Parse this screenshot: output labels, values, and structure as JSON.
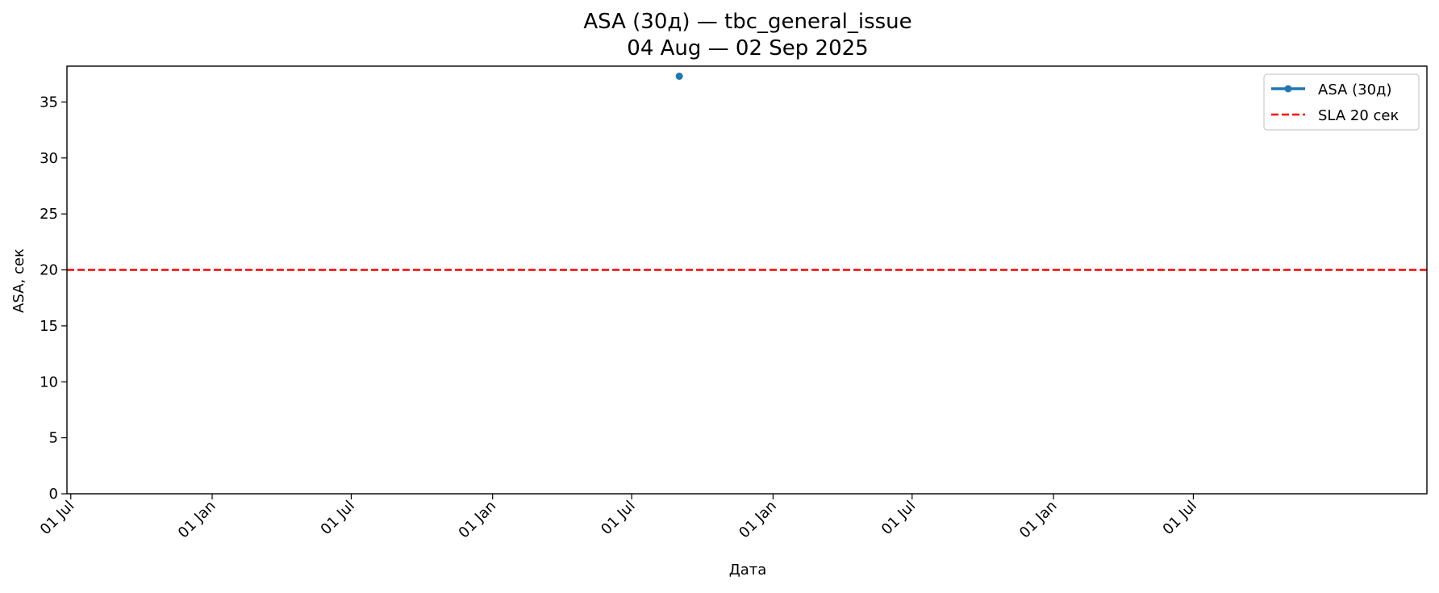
{
  "chart_data": {
    "type": "line",
    "title": "ASA (30д) — tbc_general_issue",
    "subtitle": "04 Aug — 02 Sep 2025",
    "xlabel": "Дата",
    "ylabel": "ASA, сек",
    "xlim": [
      "2020-06-26",
      "2025-05-01"
    ],
    "ylim": [
      0,
      38.2
    ],
    "x_ticks": [
      {
        "date": "2020-07-01",
        "label": "01 Jul"
      },
      {
        "date": "2021-01-01",
        "label": "01 Jan"
      },
      {
        "date": "2021-07-01",
        "label": "01 Jul"
      },
      {
        "date": "2022-01-01",
        "label": "01 Jan"
      },
      {
        "date": "2022-07-01",
        "label": "01 Jul"
      },
      {
        "date": "2023-01-01",
        "label": "01 Jan"
      },
      {
        "date": "2023-07-01",
        "label": "01 Jul"
      },
      {
        "date": "2024-01-01",
        "label": "01 Jan"
      },
      {
        "date": "2024-07-01",
        "label": "01 Jul"
      }
    ],
    "y_ticks": [
      0,
      5,
      10,
      15,
      20,
      25,
      30,
      35
    ],
    "series": [
      {
        "name": "ASA (30д)",
        "color": "#1f77b4",
        "style": "solid-marker",
        "points": [
          {
            "x": "2022-09-01",
            "y": 37.3
          }
        ]
      }
    ],
    "reference_lines": [
      {
        "name": "SLA 20 сек",
        "y": 20,
        "color": "#ff0000",
        "style": "dashed"
      }
    ],
    "legend": {
      "position": "top-right",
      "entries": [
        "ASA (30д)",
        "SLA 20 сек"
      ]
    },
    "grid": false
  }
}
